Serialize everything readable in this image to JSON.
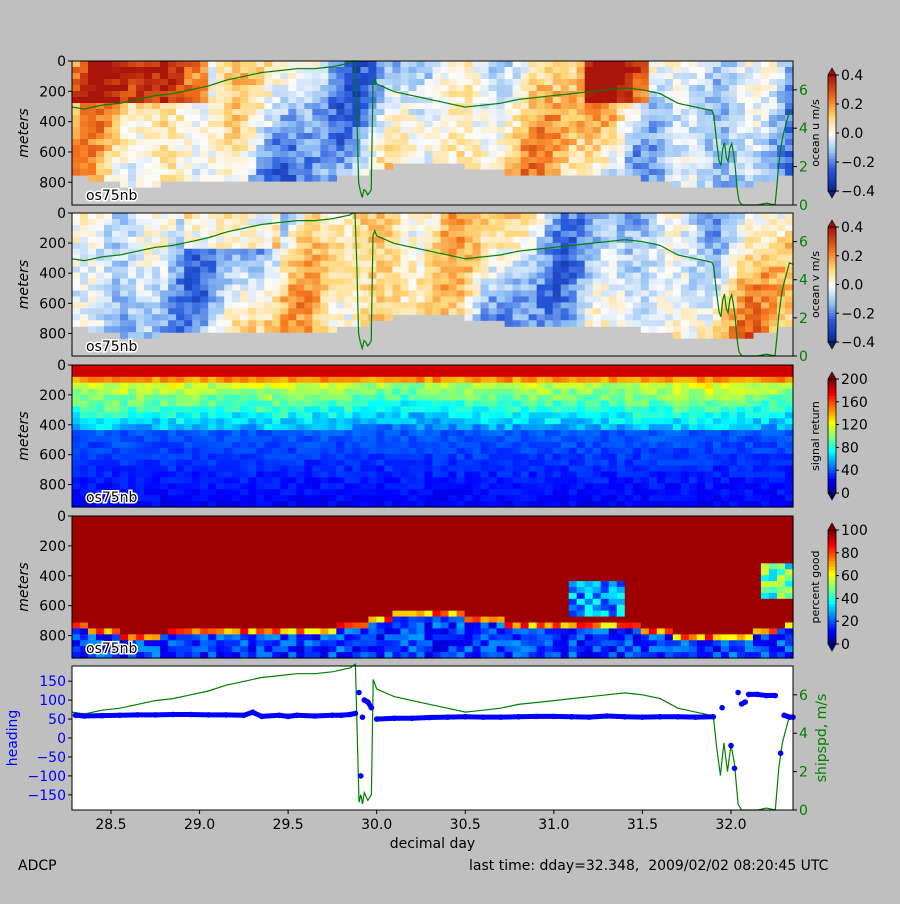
{
  "footer": {
    "left": "ADCP",
    "right": "last time: dday=32.348,  2009/02/02 08:20:45 UTC"
  },
  "chart_data": [
    {
      "type": "heatmap",
      "panel": "u",
      "ylabel": "meters",
      "inset_label": "os75nb",
      "colorbar_label": "ocean u m/s",
      "colorbar_ticks": [
        "0.4",
        "0.2",
        "0.0",
        "−0.2",
        "−0.4"
      ],
      "colorbar_range": [
        -0.4,
        0.4
      ],
      "y_ticks": [
        "0",
        "200",
        "400",
        "600",
        "800"
      ],
      "right_ticks": [
        "6",
        "4",
        "2",
        "0"
      ],
      "colormap": "diverging",
      "overlay": "shipspd, m/s",
      "colors": {
        "overlay": "#008000",
        "nodata": "#c8c8c8"
      }
    },
    {
      "type": "heatmap",
      "panel": "v",
      "ylabel": "meters",
      "inset_label": "os75nb",
      "colorbar_label": "ocean v m/s",
      "colorbar_ticks": [
        "0.4",
        "0.2",
        "0.0",
        "−0.2",
        "−0.4"
      ],
      "colorbar_range": [
        -0.4,
        0.4
      ],
      "y_ticks": [
        "0",
        "200",
        "400",
        "600",
        "800"
      ],
      "right_ticks": [
        "6",
        "4",
        "2",
        "0"
      ],
      "colormap": "diverging",
      "overlay": "shipspd, m/s",
      "colors": {
        "overlay": "#008000",
        "nodata": "#c8c8c8"
      }
    },
    {
      "type": "heatmap",
      "panel": "amp",
      "ylabel": "meters",
      "inset_label": "os75nb",
      "colorbar_label": "signal return",
      "colorbar_ticks": [
        "200",
        "160",
        "120",
        "80",
        "40",
        "0"
      ],
      "colorbar_range": [
        0,
        200
      ],
      "y_ticks": [
        "0",
        "200",
        "400",
        "600",
        "800"
      ],
      "colormap": "jet"
    },
    {
      "type": "heatmap",
      "panel": "pg",
      "ylabel": "meters",
      "inset_label": "os75nb",
      "colorbar_label": "percent good",
      "colorbar_ticks": [
        "100",
        "80",
        "60",
        "40",
        "20",
        "0"
      ],
      "colorbar_range": [
        0,
        100
      ],
      "y_ticks": [
        "0",
        "200",
        "400",
        "600",
        "800"
      ],
      "colormap": "jet"
    },
    {
      "type": "line",
      "panel": "heading",
      "ylabel": "heading",
      "y2label": "shipspd, m/s",
      "xlabel": "decimal day",
      "x_ticks": [
        "28.5",
        "29.0",
        "29.5",
        "30.0",
        "30.5",
        "31.0",
        "31.5",
        "32.0"
      ],
      "y_ticks": [
        "150",
        "100",
        "50",
        "0",
        "−50",
        "−100",
        "−150"
      ],
      "y2_ticks": [
        "6",
        "4",
        "2",
        "0"
      ],
      "xlim": [
        28.28,
        32.35
      ],
      "ylim": [
        -190,
        190
      ],
      "y2lim": [
        0,
        7.5
      ],
      "colors": {
        "heading": "#0000ff",
        "shipspd": "#008000"
      },
      "series": [
        {
          "name": "heading",
          "x": [
            28.3,
            28.35,
            28.45,
            28.55,
            28.65,
            28.75,
            28.85,
            28.95,
            29.05,
            29.15,
            29.25,
            29.3,
            29.35,
            29.45,
            29.5,
            29.55,
            29.65,
            29.75,
            29.8,
            29.85,
            29.88,
            29.9,
            29.91,
            29.92,
            29.93,
            29.95,
            29.97,
            30.0,
            30.1,
            30.2,
            30.3,
            30.4,
            30.5,
            30.6,
            30.7,
            30.8,
            30.9,
            31.0,
            31.1,
            31.2,
            31.3,
            31.4,
            31.5,
            31.6,
            31.7,
            31.8,
            31.9,
            31.95,
            32.0,
            32.02,
            32.04,
            32.06,
            32.08,
            32.1,
            32.15,
            32.2,
            32.25,
            32.28,
            32.3,
            32.33,
            32.35
          ],
          "y": [
            60,
            58,
            59,
            60,
            61,
            61,
            62,
            62,
            61,
            61,
            60,
            68,
            57,
            60,
            57,
            60,
            58,
            60,
            60,
            62,
            65,
            120,
            -100,
            55,
            100,
            95,
            80,
            50,
            52,
            52,
            54,
            55,
            56,
            55,
            55,
            56,
            57,
            57,
            56,
            55,
            58,
            56,
            55,
            56,
            56,
            55,
            56,
            80,
            -20,
            -80,
            120,
            90,
            95,
            115,
            115,
            112,
            112,
            -40,
            60,
            55,
            55
          ]
        },
        {
          "name": "shipspd",
          "x": [
            28.28,
            28.35,
            28.45,
            28.55,
            28.65,
            28.75,
            28.85,
            28.95,
            29.05,
            29.15,
            29.25,
            29.35,
            29.45,
            29.55,
            29.65,
            29.75,
            29.8,
            29.85,
            29.88,
            29.89,
            29.9,
            29.91,
            29.92,
            29.93,
            29.95,
            29.97,
            29.98,
            30.0,
            30.1,
            30.2,
            30.3,
            30.4,
            30.5,
            30.6,
            30.7,
            30.8,
            30.9,
            31.0,
            31.1,
            31.2,
            31.3,
            31.4,
            31.5,
            31.6,
            31.7,
            31.8,
            31.9,
            31.92,
            31.94,
            31.96,
            31.98,
            32.0,
            32.02,
            32.04,
            32.06,
            32.1,
            32.15,
            32.2,
            32.25,
            32.27,
            32.29,
            32.31,
            32.33,
            32.35
          ],
          "y": [
            5.1,
            5.0,
            5.2,
            5.3,
            5.5,
            5.7,
            5.8,
            6.0,
            6.2,
            6.5,
            6.7,
            6.9,
            7.0,
            7.1,
            7.1,
            7.2,
            7.3,
            7.4,
            7.6,
            4.0,
            0.4,
            0.8,
            0.3,
            0.9,
            0.5,
            0.8,
            6.8,
            6.3,
            5.9,
            5.7,
            5.5,
            5.3,
            5.1,
            5.2,
            5.3,
            5.5,
            5.6,
            5.7,
            5.8,
            5.9,
            6.0,
            6.1,
            6.0,
            5.8,
            5.3,
            5.1,
            4.9,
            3.2,
            1.8,
            3.5,
            2.0,
            3.4,
            2.4,
            0.3,
            0.0,
            0.0,
            0.0,
            0.1,
            0.0,
            2.2,
            3.5,
            4.2,
            4.9,
            4.8
          ]
        }
      ]
    }
  ]
}
